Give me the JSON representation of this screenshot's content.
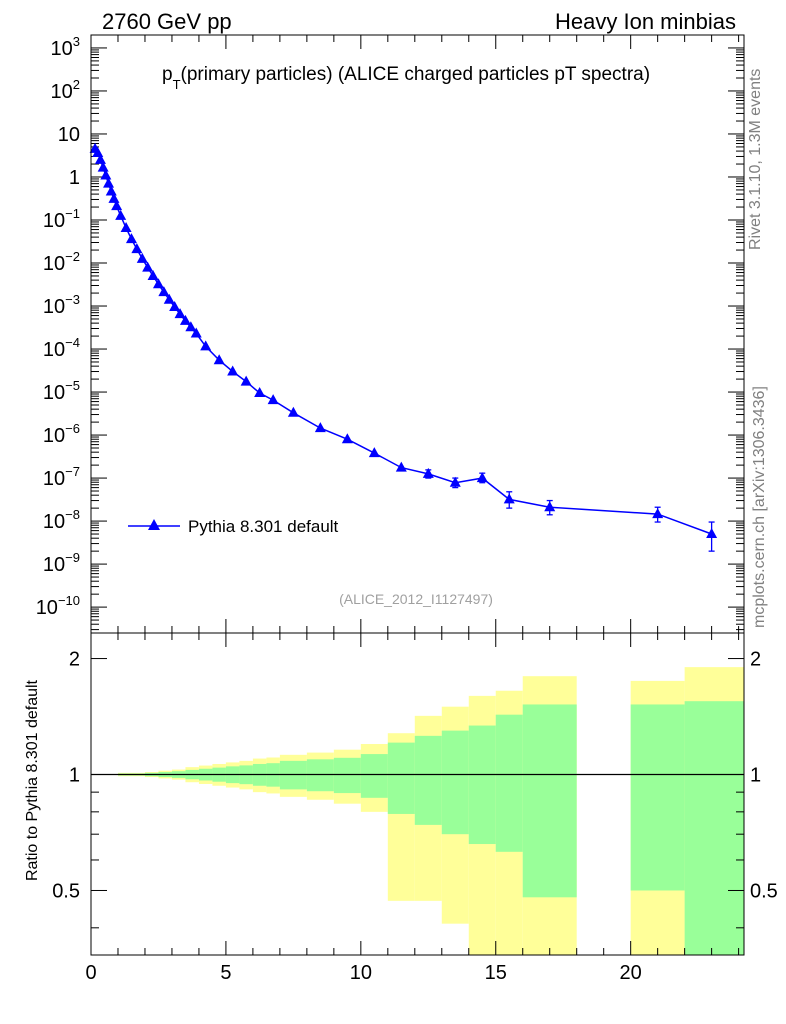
{
  "header": {
    "left": "2760 GeV pp",
    "right": "Heavy Ion minbias"
  },
  "side_text": {
    "rivet": "Rivet 3.1.10,  1.3M events",
    "mcplots": "mcplots.cern.ch [arXiv:1306.3436]"
  },
  "chart_data": [
    {
      "type": "scatter",
      "title_main": "p",
      "title_sub": "T",
      "title_rest": "(primary particles) (ALICE charged particles pT spectra)",
      "analysis_label": "(ALICE_2012_I1127497)",
      "xlabel": "",
      "ylabel": "",
      "xlim": [
        0,
        24.2
      ],
      "ylim": [
        2.5e-11,
        2000
      ],
      "yscale": "log",
      "yticks": [
        {
          "v": 1e-10,
          "base": "10",
          "exp": "−10"
        },
        {
          "v": 1e-09,
          "base": "10",
          "exp": "−9"
        },
        {
          "v": 1e-08,
          "base": "10",
          "exp": "−8"
        },
        {
          "v": 1e-07,
          "base": "10",
          "exp": "−7"
        },
        {
          "v": 1e-06,
          "base": "10",
          "exp": "−6"
        },
        {
          "v": 1e-05,
          "base": "10",
          "exp": "−5"
        },
        {
          "v": 0.0001,
          "base": "10",
          "exp": "−4"
        },
        {
          "v": 0.001,
          "base": "10",
          "exp": "−3"
        },
        {
          "v": 0.01,
          "base": "10",
          "exp": "−2"
        },
        {
          "v": 0.1,
          "base": "10",
          "exp": "−1"
        },
        {
          "v": 1,
          "base": "1",
          "exp": ""
        },
        {
          "v": 10,
          "base": "10",
          "exp": ""
        },
        {
          "v": 100,
          "base": "10",
          "exp": "2"
        },
        {
          "v": 1000,
          "base": "10",
          "exp": "3"
        }
      ],
      "legend": {
        "label": "Pythia 8.301 default",
        "position": "lower-left"
      },
      "series": [
        {
          "name": "Pythia 8.301 default",
          "color": "#0000ff",
          "marker": "triangle",
          "points": [
            {
              "x": 0.15,
              "y": 4.5
            },
            {
              "x": 0.25,
              "y": 3.6
            },
            {
              "x": 0.35,
              "y": 2.5
            },
            {
              "x": 0.45,
              "y": 1.65
            },
            {
              "x": 0.55,
              "y": 1.08
            },
            {
              "x": 0.65,
              "y": 0.7
            },
            {
              "x": 0.75,
              "y": 0.46
            },
            {
              "x": 0.85,
              "y": 0.31
            },
            {
              "x": 0.95,
              "y": 0.21
            },
            {
              "x": 1.1,
              "y": 0.125
            },
            {
              "x": 1.3,
              "y": 0.065
            },
            {
              "x": 1.5,
              "y": 0.036
            },
            {
              "x": 1.7,
              "y": 0.021
            },
            {
              "x": 1.9,
              "y": 0.0125
            },
            {
              "x": 2.1,
              "y": 0.0078
            },
            {
              "x": 2.3,
              "y": 0.005
            },
            {
              "x": 2.5,
              "y": 0.0032
            },
            {
              "x": 2.7,
              "y": 0.0021
            },
            {
              "x": 2.9,
              "y": 0.0014
            },
            {
              "x": 3.1,
              "y": 0.00095
            },
            {
              "x": 3.3,
              "y": 0.00065
            },
            {
              "x": 3.5,
              "y": 0.00045
            },
            {
              "x": 3.7,
              "y": 0.00032
            },
            {
              "x": 3.9,
              "y": 0.00023
            },
            {
              "x": 4.25,
              "y": 0.000115
            },
            {
              "x": 4.75,
              "y": 5.5e-05
            },
            {
              "x": 5.25,
              "y": 3e-05
            },
            {
              "x": 5.75,
              "y": 1.75e-05
            },
            {
              "x": 6.25,
              "y": 9.5e-06
            },
            {
              "x": 6.75,
              "y": 6.5e-06
            },
            {
              "x": 7.5,
              "y": 3.3e-06
            },
            {
              "x": 8.5,
              "y": 1.45e-06
            },
            {
              "x": 9.5,
              "y": 8e-07
            },
            {
              "x": 10.5,
              "y": 3.8e-07
            },
            {
              "x": 11.5,
              "y": 1.75e-07
            },
            {
              "x": 12.5,
              "y": 1.25e-07
            },
            {
              "x": 13.5,
              "y": 7.8e-08
            },
            {
              "x": 14.5,
              "y": 1e-07
            },
            {
              "x": 15.5,
              "y": 3.2e-08
            },
            {
              "x": 17.0,
              "y": 2.1e-08
            },
            {
              "x": 21.0,
              "y": 1.45e-08
            },
            {
              "x": 23.0,
              "y": 5e-09
            }
          ],
          "errors": [
            {
              "x": 12.5,
              "lo": 1e-07,
              "hi": 1.55e-07
            },
            {
              "x": 13.5,
              "lo": 6e-08,
              "hi": 1e-07
            },
            {
              "x": 14.5,
              "lo": 7.8e-08,
              "hi": 1.3e-07
            },
            {
              "x": 15.5,
              "lo": 2e-08,
              "hi": 4.8e-08
            },
            {
              "x": 17.0,
              "lo": 1.4e-08,
              "hi": 3e-08
            },
            {
              "x": 21.0,
              "lo": 9.5e-09,
              "hi": 2.1e-08
            },
            {
              "x": 23.0,
              "lo": 2e-09,
              "hi": 9.5e-09
            }
          ]
        }
      ]
    },
    {
      "type": "area",
      "ylabel": "Ratio to Pythia 8.301 default",
      "xlim": [
        0,
        24.2
      ],
      "ylim": [
        0.34,
        2.33
      ],
      "yscale": "log",
      "yticks": [
        0.5,
        1,
        2
      ],
      "xticks": [
        0,
        5,
        10,
        15,
        20
      ],
      "reference_line": 1,
      "band_colors": {
        "outer": "#ffff99",
        "inner": "#99ff99"
      },
      "bands": [
        {
          "x0": 0.0,
          "x1": 0.3,
          "y_lo": 0.998,
          "y_hi": 1.002,
          "g_lo": 0.999,
          "g_hi": 1.001
        },
        {
          "x0": 0.3,
          "x1": 1.0,
          "y_lo": 0.997,
          "y_hi": 1.003,
          "g_lo": 0.998,
          "g_hi": 1.002
        },
        {
          "x0": 1.0,
          "x1": 2.0,
          "y_lo": 0.99,
          "y_hi": 1.01,
          "g_lo": 0.994,
          "g_hi": 1.006
        },
        {
          "x0": 2.0,
          "x1": 2.5,
          "y_lo": 0.985,
          "y_hi": 1.015,
          "g_lo": 0.99,
          "g_hi": 1.01
        },
        {
          "x0": 2.5,
          "x1": 3.0,
          "y_lo": 0.977,
          "y_hi": 1.023,
          "g_lo": 0.985,
          "g_hi": 1.015
        },
        {
          "x0": 3.0,
          "x1": 3.5,
          "y_lo": 0.97,
          "y_hi": 1.03,
          "g_lo": 0.98,
          "g_hi": 1.02
        },
        {
          "x0": 3.5,
          "x1": 4.0,
          "y_lo": 0.955,
          "y_hi": 1.045,
          "g_lo": 0.972,
          "g_hi": 1.028
        },
        {
          "x0": 4.0,
          "x1": 4.5,
          "y_lo": 0.945,
          "y_hi": 1.055,
          "g_lo": 0.965,
          "g_hi": 1.035
        },
        {
          "x0": 4.5,
          "x1": 5.0,
          "y_lo": 0.935,
          "y_hi": 1.065,
          "g_lo": 0.958,
          "g_hi": 1.042
        },
        {
          "x0": 5.0,
          "x1": 5.5,
          "y_lo": 0.925,
          "y_hi": 1.075,
          "g_lo": 0.95,
          "g_hi": 1.05
        },
        {
          "x0": 5.5,
          "x1": 6.0,
          "y_lo": 0.915,
          "y_hi": 1.085,
          "g_lo": 0.944,
          "g_hi": 1.056
        },
        {
          "x0": 6.0,
          "x1": 6.5,
          "y_lo": 0.9,
          "y_hi": 1.1,
          "g_lo": 0.935,
          "g_hi": 1.065
        },
        {
          "x0": 6.5,
          "x1": 7.0,
          "y_lo": 0.893,
          "y_hi": 1.107,
          "g_lo": 0.93,
          "g_hi": 1.07
        },
        {
          "x0": 7.0,
          "x1": 8.0,
          "y_lo": 0.875,
          "y_hi": 1.125,
          "g_lo": 0.915,
          "g_hi": 1.085
        },
        {
          "x0": 8.0,
          "x1": 9.0,
          "y_lo": 0.86,
          "y_hi": 1.14,
          "g_lo": 0.905,
          "g_hi": 1.095
        },
        {
          "x0": 9.0,
          "x1": 10.0,
          "y_lo": 0.84,
          "y_hi": 1.16,
          "g_lo": 0.895,
          "g_hi": 1.105
        },
        {
          "x0": 10.0,
          "x1": 11.0,
          "y_lo": 0.8,
          "y_hi": 1.2,
          "g_lo": 0.87,
          "g_hi": 1.13
        },
        {
          "x0": 11.0,
          "x1": 12.0,
          "y_lo": 0.47,
          "y_hi": 1.28,
          "g_lo": 0.79,
          "g_hi": 1.21
        },
        {
          "x0": 12.0,
          "x1": 13.0,
          "y_lo": 0.47,
          "y_hi": 1.42,
          "g_lo": 0.74,
          "g_hi": 1.26
        },
        {
          "x0": 13.0,
          "x1": 14.0,
          "y_lo": 0.41,
          "y_hi": 1.5,
          "g_lo": 0.7,
          "g_hi": 1.3
        },
        {
          "x0": 14.0,
          "x1": 15.0,
          "y_lo": 0.34,
          "y_hi": 1.6,
          "g_lo": 0.66,
          "g_hi": 1.34
        },
        {
          "x0": 15.0,
          "x1": 16.0,
          "y_lo": 0.34,
          "y_hi": 1.65,
          "g_lo": 0.63,
          "g_hi": 1.43
        },
        {
          "x0": 16.0,
          "x1": 18.0,
          "y_lo": 0.34,
          "y_hi": 1.8,
          "g_lo": 0.48,
          "g_hi": 1.52
        },
        {
          "x0": 20.0,
          "x1": 22.0,
          "y_lo": 0.34,
          "y_hi": 1.75,
          "g_lo": 0.5,
          "g_hi": 1.52
        },
        {
          "x0": 22.0,
          "x1": 24.2,
          "y_lo": 0.34,
          "y_hi": 1.9,
          "g_lo": 0.34,
          "g_hi": 1.55
        }
      ]
    }
  ]
}
